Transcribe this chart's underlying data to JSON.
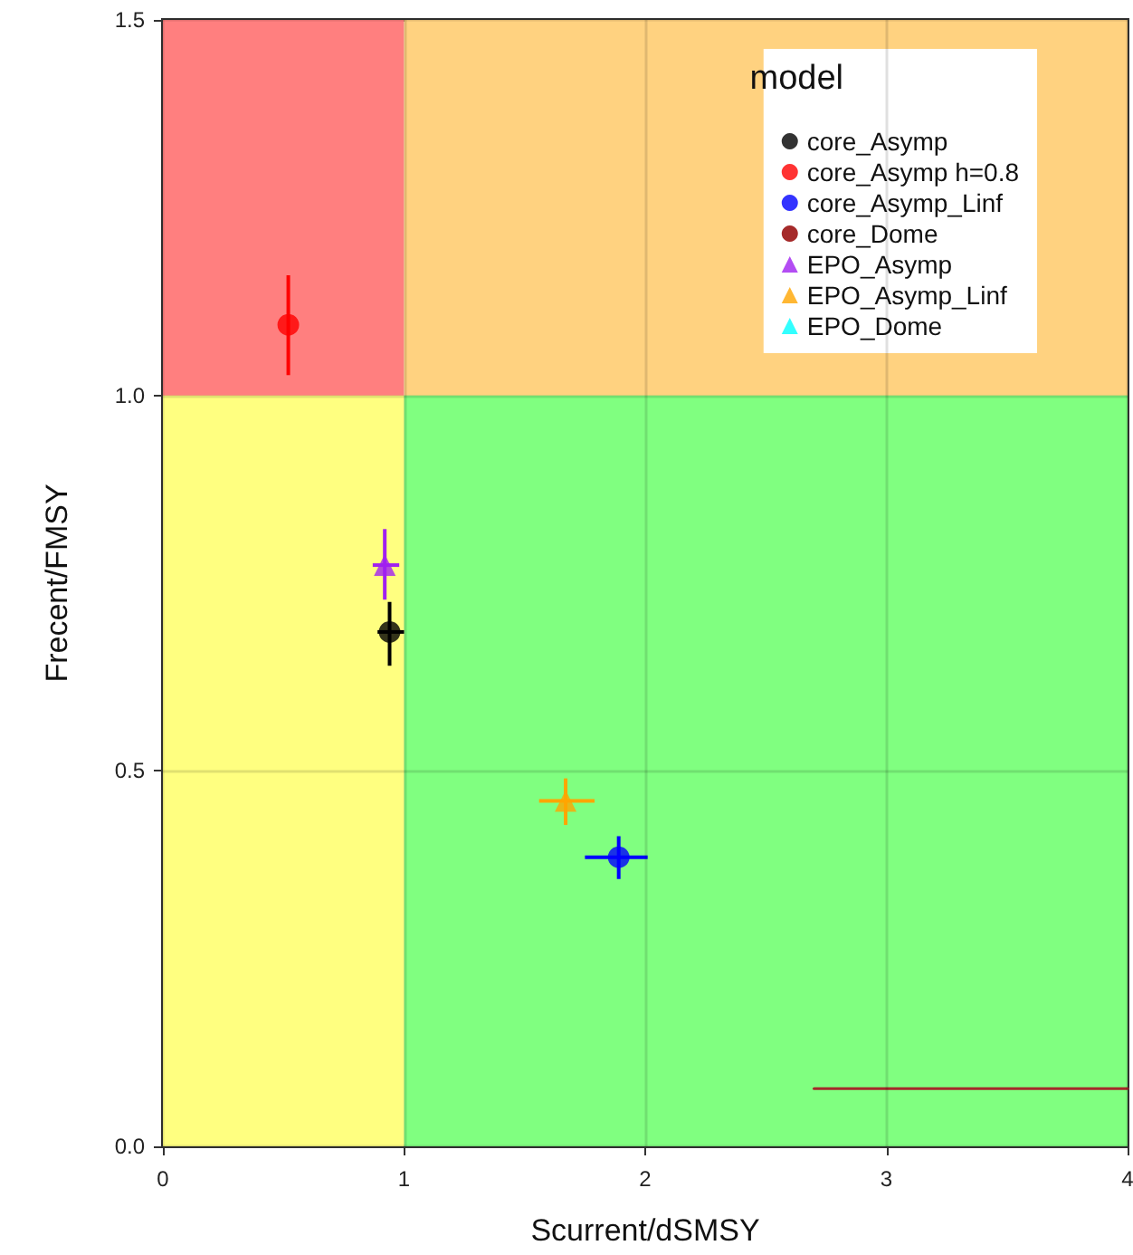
{
  "chart_data": {
    "type": "scatter",
    "xlabel": "Scurrent/dSMSY",
    "ylabel": "Frecent/FMSY",
    "legend_title": "model",
    "legend": "top right",
    "grid": true,
    "xlim": [
      0,
      4
    ],
    "xticks": [
      0,
      1,
      2,
      3,
      4
    ],
    "ylim": [
      0,
      1.5
    ],
    "yticks": [
      {
        "value": 0,
        "label": "0.0"
      },
      {
        "value": 0.5,
        "label": "0.5"
      },
      {
        "value": 1,
        "label": "1.0"
      },
      {
        "value": 1.5,
        "label": "1.5"
      }
    ],
    "series": [
      {
        "type": "area",
        "color": "#ff7f7f",
        "x": [
          0,
          1
        ],
        "values": [
          1.5,
          1.5
        ]
      },
      {
        "type": "area",
        "color": "#ffd280",
        "x": [
          1,
          4
        ],
        "values": [
          1.5,
          1.5
        ]
      },
      {
        "type": "area",
        "color": "#ffff80",
        "x": [
          0,
          1
        ],
        "values": [
          1,
          1
        ]
      },
      {
        "type": "area",
        "color": "#80ff80",
        "x": [
          1,
          4
        ],
        "values": [
          1,
          1
        ]
      },
      {
        "name": "core_Asymp",
        "color": "#000000",
        "marker": "circle",
        "x": [
          0.94
        ],
        "values": [
          0.685
        ],
        "errors": [
          [
            0.64,
            0.725
          ]
        ],
        "xerrors": [
          [
            0.89,
            1.0
          ]
        ]
      },
      {
        "name": "core_Asymp h=0.8",
        "color": "#ff0000",
        "marker": "circle",
        "x": [
          0.52
        ],
        "values": [
          1.094
        ],
        "errors": [
          [
            1.027,
            1.16
          ]
        ],
        "xerrors": [
          null
        ]
      },
      {
        "name": "core_Asymp_Linf",
        "color": "#0000ff",
        "marker": "circle",
        "x": [
          1.89
        ],
        "values": [
          0.385
        ],
        "errors": [
          [
            0.356,
            0.413
          ]
        ],
        "xerrors": [
          [
            1.75,
            2.01
          ]
        ]
      },
      {
        "name": "core_Dome",
        "color": "#a52a2a",
        "type": "line",
        "marker": "none",
        "x": [
          2.7,
          4
        ],
        "values": [
          0.077,
          0.077
        ]
      },
      {
        "name": "EPO_Asymp",
        "color": "#a020f0",
        "marker": "triangle",
        "x": [
          0.92
        ],
        "values": [
          0.774
        ],
        "errors": [
          [
            0.728,
            0.822
          ]
        ],
        "xerrors": [
          [
            0.87,
            0.98
          ]
        ]
      },
      {
        "name": "EPO_Asymp_Linf",
        "color": "#ffa500",
        "marker": "triangle",
        "x": [
          1.67
        ],
        "values": [
          0.46
        ],
        "errors": [
          [
            0.428,
            0.49
          ]
        ],
        "xerrors": [
          [
            1.56,
            1.79
          ]
        ]
      },
      {
        "name": "EPO_Dome",
        "color": "#00ffff",
        "marker": "triangle"
      }
    ]
  }
}
